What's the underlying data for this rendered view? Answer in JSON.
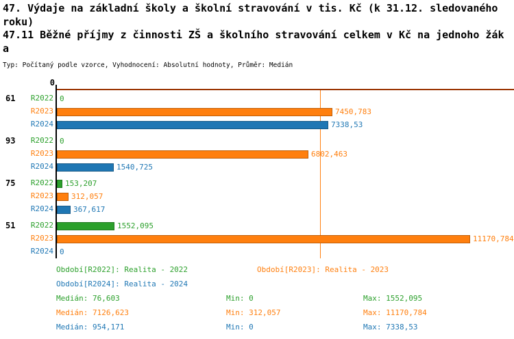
{
  "header": {
    "title_lines": [
      "47. Výdaje na základní školy a školní stravování v tis. Kč (k 31.12. sledovaného",
      "roku)"
    ],
    "indicator_lines": [
      "47.11 Běžné příjmy z činnosti ZŠ a školního stravování celkem v Kč na jednoho žák",
      "a"
    ],
    "meta": "Typ: Počítaný podle vzorce, Vyhodnocení: Absolutní hodnoty, Průměr: Medián"
  },
  "chart_data": {
    "type": "bar",
    "orientation": "horizontal",
    "title": "47. Výdaje na základní školy a školní stravování v tis. Kč (k 31.12. sledovaného roku)",
    "subtitle": "47.11 Běžné příjmy z činnosti ZŠ a školního stravování celkem v Kč na jednoho žáka",
    "axis_tick_label": "0",
    "x_axis": {
      "min": 0,
      "max": 11170.784
    },
    "series": [
      "R2022",
      "R2023",
      "R2024"
    ],
    "series_colors": {
      "R2022": "#2ca02c",
      "R2023": "#ff7f0e",
      "R2024": "#1f77b4"
    },
    "frame_color": "#993300",
    "groups": [
      {
        "id": "61",
        "bars": [
          {
            "series": "R2022",
            "value": 0,
            "label": "0"
          },
          {
            "series": "R2023",
            "value": 7450.783,
            "label": "7450,783"
          },
          {
            "series": "R2024",
            "value": 7338.53,
            "label": "7338,53"
          }
        ]
      },
      {
        "id": "93",
        "bars": [
          {
            "series": "R2022",
            "value": 0,
            "label": "0"
          },
          {
            "series": "R2023",
            "value": 6802.463,
            "label": "6802,463"
          },
          {
            "series": "R2024",
            "value": 1540.725,
            "label": "1540,725"
          }
        ]
      },
      {
        "id": "75",
        "bars": [
          {
            "series": "R2022",
            "value": 153.207,
            "label": "153,207"
          },
          {
            "series": "R2023",
            "value": 312.057,
            "label": "312,057"
          },
          {
            "series": "R2024",
            "value": 367.617,
            "label": "367,617"
          }
        ]
      },
      {
        "id": "51",
        "bars": [
          {
            "series": "R2022",
            "value": 1552.095,
            "label": "1552,095"
          },
          {
            "series": "R2023",
            "value": 11170.784,
            "label": "11170,784"
          },
          {
            "series": "R2024",
            "value": 0,
            "label": "0"
          }
        ]
      }
    ],
    "median_lines": [
      {
        "series": "R2023",
        "value": 7126.623
      }
    ]
  },
  "legend": [
    {
      "series": "R2022",
      "label": "Období[R2022]: Realita - 2022"
    },
    {
      "series": "R2023",
      "label": "Období[R2023]: Realita - 2023"
    },
    {
      "series": "R2024",
      "label": "Období[R2024]: Realita - 2024"
    }
  ],
  "stats": [
    {
      "series": "R2022",
      "median": "Medián: 76,603",
      "min": "Min: 0",
      "max": "Max: 1552,095"
    },
    {
      "series": "R2023",
      "median": "Medián: 7126,623",
      "min": "Min: 312,057",
      "max": "Max: 11170,784"
    },
    {
      "series": "R2024",
      "median": "Medián: 954,171",
      "min": "Min: 0",
      "max": "Max: 7338,53"
    }
  ]
}
